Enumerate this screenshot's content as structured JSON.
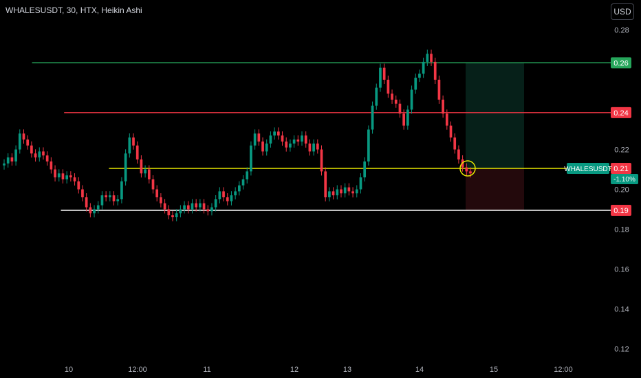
{
  "header": {
    "title": "WHALESUSDT, 30, HTX, Heikin Ashi"
  },
  "currency_button": "USD",
  "colors": {
    "up": "#089981",
    "down": "#f23645",
    "background": "#000000",
    "target": "#26a65b",
    "stop": "#f23645",
    "entry": "#e8e800",
    "support": "#ffffff"
  },
  "chart_data": {
    "type": "candlestick",
    "symbol": "WHALESUSDT",
    "interval": "30",
    "exchange": "HTX",
    "style": "Heikin Ashi",
    "y_ticks": [
      "0.28",
      "0.22",
      "0.20",
      "0.18",
      "0.16",
      "0.14",
      "0.12"
    ],
    "x_ticks": [
      "10",
      "12:00",
      "11",
      "12",
      "13",
      "14",
      "15",
      "12:00"
    ],
    "ylim": [
      0.115,
      0.295
    ],
    "levels": [
      {
        "name": "take-profit",
        "value": 0.2635,
        "label": "0.26",
        "color": "#26a65b",
        "from_x": 0.05
      },
      {
        "name": "resistance",
        "value": 0.2385,
        "label": "0.24",
        "color": "#f23645",
        "from_x": 0.1
      },
      {
        "name": "entry",
        "value": 0.2105,
        "label": "0.21",
        "color": "#e8e800",
        "from_x": 0.17
      },
      {
        "name": "support",
        "value": 0.1895,
        "label": "0.19",
        "color": "#ffffff",
        "from_x": 0.095
      }
    ],
    "current_price": {
      "symbol_label": "WHALESUSDT",
      "price_label": "0.21",
      "change_label": "-1.10%",
      "value": 0.2105
    },
    "position": {
      "entry": 0.2105,
      "target": 0.2635,
      "stop": 0.1895
    },
    "candles": [
      [
        0.212,
        0.213
      ],
      [
        0.213,
        0.216
      ],
      [
        0.216,
        0.214
      ],
      [
        0.214,
        0.22
      ],
      [
        0.22,
        0.228
      ],
      [
        0.228,
        0.225
      ],
      [
        0.225,
        0.222
      ],
      [
        0.222,
        0.218
      ],
      [
        0.218,
        0.216
      ],
      [
        0.216,
        0.219
      ],
      [
        0.219,
        0.217
      ],
      [
        0.217,
        0.214
      ],
      [
        0.214,
        0.21
      ],
      [
        0.21,
        0.206
      ],
      [
        0.206,
        0.208
      ],
      [
        0.208,
        0.205
      ],
      [
        0.205,
        0.207
      ],
      [
        0.207,
        0.206
      ],
      [
        0.206,
        0.204
      ],
      [
        0.204,
        0.2
      ],
      [
        0.2,
        0.196
      ],
      [
        0.196,
        0.191
      ],
      [
        0.191,
        0.188
      ],
      [
        0.188,
        0.19
      ],
      [
        0.19,
        0.192
      ],
      [
        0.192,
        0.197
      ],
      [
        0.197,
        0.196
      ],
      [
        0.196,
        0.197
      ],
      [
        0.197,
        0.194
      ],
      [
        0.194,
        0.195
      ],
      [
        0.195,
        0.204
      ],
      [
        0.204,
        0.218
      ],
      [
        0.218,
        0.226
      ],
      [
        0.226,
        0.222
      ],
      [
        0.222,
        0.215
      ],
      [
        0.215,
        0.208
      ],
      [
        0.208,
        0.21
      ],
      [
        0.21,
        0.205
      ],
      [
        0.205,
        0.2
      ],
      [
        0.2,
        0.196
      ],
      [
        0.196,
        0.193
      ],
      [
        0.193,
        0.19
      ],
      [
        0.19,
        0.187
      ],
      [
        0.187,
        0.186
      ],
      [
        0.186,
        0.188
      ],
      [
        0.188,
        0.19
      ],
      [
        0.19,
        0.192
      ],
      [
        0.192,
        0.19
      ],
      [
        0.19,
        0.193
      ],
      [
        0.193,
        0.191
      ],
      [
        0.191,
        0.193
      ],
      [
        0.193,
        0.19
      ],
      [
        0.19,
        0.189
      ],
      [
        0.189,
        0.191
      ],
      [
        0.191,
        0.195
      ],
      [
        0.195,
        0.199
      ],
      [
        0.199,
        0.196
      ],
      [
        0.196,
        0.194
      ],
      [
        0.194,
        0.197
      ],
      [
        0.197,
        0.199
      ],
      [
        0.199,
        0.202
      ],
      [
        0.202,
        0.205
      ],
      [
        0.205,
        0.209
      ],
      [
        0.209,
        0.222
      ],
      [
        0.222,
        0.228
      ],
      [
        0.228,
        0.224
      ],
      [
        0.224,
        0.219
      ],
      [
        0.219,
        0.223
      ],
      [
        0.223,
        0.227
      ],
      [
        0.227,
        0.229
      ],
      [
        0.229,
        0.227
      ],
      [
        0.227,
        0.224
      ],
      [
        0.224,
        0.221
      ],
      [
        0.221,
        0.223
      ],
      [
        0.223,
        0.225
      ],
      [
        0.225,
        0.224
      ],
      [
        0.224,
        0.227
      ],
      [
        0.227,
        0.223
      ],
      [
        0.223,
        0.219
      ],
      [
        0.219,
        0.223
      ],
      [
        0.223,
        0.22
      ],
      [
        0.22,
        0.209
      ],
      [
        0.209,
        0.196
      ],
      [
        0.196,
        0.199
      ],
      [
        0.199,
        0.197
      ],
      [
        0.197,
        0.2
      ],
      [
        0.2,
        0.198
      ],
      [
        0.198,
        0.201
      ],
      [
        0.201,
        0.199
      ],
      [
        0.199,
        0.198
      ],
      [
        0.198,
        0.2
      ],
      [
        0.2,
        0.206
      ],
      [
        0.206,
        0.214
      ],
      [
        0.214,
        0.23
      ],
      [
        0.23,
        0.242
      ],
      [
        0.242,
        0.251
      ],
      [
        0.251,
        0.261
      ],
      [
        0.261,
        0.255
      ],
      [
        0.255,
        0.248
      ],
      [
        0.248,
        0.245
      ],
      [
        0.245,
        0.243
      ],
      [
        0.243,
        0.238
      ],
      [
        0.238,
        0.232
      ],
      [
        0.232,
        0.24
      ],
      [
        0.24,
        0.25
      ],
      [
        0.25,
        0.256
      ],
      [
        0.256,
        0.258
      ],
      [
        0.258,
        0.264
      ],
      [
        0.264,
        0.268
      ],
      [
        0.268,
        0.264
      ],
      [
        0.264,
        0.255
      ],
      [
        0.255,
        0.245
      ],
      [
        0.245,
        0.238
      ],
      [
        0.238,
        0.232
      ],
      [
        0.232,
        0.226
      ],
      [
        0.226,
        0.22
      ],
      [
        0.22,
        0.215
      ],
      [
        0.215,
        0.211
      ],
      [
        0.211,
        0.209
      ],
      [
        0.209,
        0.208
      ]
    ]
  }
}
